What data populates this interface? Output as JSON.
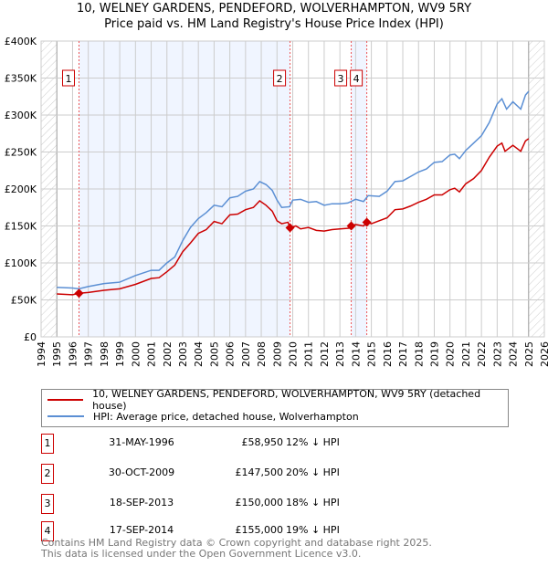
{
  "title_line1": "10, WELNEY GARDENS, PENDEFORD, WOLVERHAMPTON, WV9 5RY",
  "title_line2": "Price paid vs. HM Land Registry's House Price Index (HPI)",
  "chart_data": {
    "type": "line",
    "xlim": [
      1994,
      2026
    ],
    "ylim": [
      0,
      400000
    ],
    "x_ticks": [
      "1994",
      "1995",
      "1996",
      "1997",
      "1998",
      "1999",
      "2000",
      "2001",
      "2002",
      "2003",
      "2004",
      "2005",
      "2006",
      "2007",
      "2008",
      "2009",
      "2010",
      "2011",
      "2012",
      "2013",
      "2014",
      "2015",
      "2016",
      "2017",
      "2018",
      "2019",
      "2020",
      "2021",
      "2022",
      "2023",
      "2024",
      "2025",
      "2026"
    ],
    "y_ticks": [
      {
        "v": 0,
        "label": "£0"
      },
      {
        "v": 50000,
        "label": "£50K"
      },
      {
        "v": 100000,
        "label": "£100K"
      },
      {
        "v": 150000,
        "label": "£150K"
      },
      {
        "v": 200000,
        "label": "£200K"
      },
      {
        "v": 250000,
        "label": "£250K"
      },
      {
        "v": 300000,
        "label": "£300K"
      },
      {
        "v": 350000,
        "label": "£350K"
      },
      {
        "v": 400000,
        "label": "£400K"
      }
    ],
    "grid": true,
    "data_range": [
      1995,
      2025
    ],
    "series": [
      {
        "name": "10, WELNEY GARDENS, PENDEFORD, WOLVERHAMPTON, WV9 5RY (detached house)",
        "color": "#cc0000",
        "x": [
          1995,
          1996,
          1996.41,
          1997,
          1998,
          1999,
          2000,
          2001,
          2001.5,
          2002,
          2002.5,
          2003,
          2003.5,
          2004,
          2004.5,
          2005,
          2005.5,
          2006,
          2006.5,
          2007,
          2007.5,
          2007.9,
          2008.3,
          2008.7,
          2009,
          2009.3,
          2009.7,
          2009.83,
          2010.2,
          2010.5,
          2011,
          2011.5,
          2012,
          2012.5,
          2013,
          2013.6,
          2013.72,
          2014,
          2014.5,
          2014.71,
          2015,
          2015.5,
          2016,
          2016.5,
          2017,
          2017.5,
          2018,
          2018.5,
          2019,
          2019.5,
          2020,
          2020.3,
          2020.6,
          2021,
          2021.5,
          2022,
          2022.5,
          2023,
          2023.3,
          2023.5,
          2024,
          2024.5,
          2024.8,
          2025
        ],
        "y": [
          58,
          57,
          58.95,
          60,
          63,
          65,
          71,
          79,
          80,
          88,
          97,
          115,
          127,
          140,
          145,
          156,
          153,
          165,
          166,
          172,
          175,
          184,
          178,
          170,
          157,
          153,
          155,
          147.5,
          150,
          146,
          148,
          144,
          143,
          145,
          146,
          147,
          150,
          152,
          150,
          155,
          153,
          157,
          161,
          172,
          173,
          177,
          182,
          186,
          192,
          192,
          199,
          201,
          196,
          207,
          214,
          225,
          243,
          258,
          262,
          251,
          259,
          251,
          265,
          268
        ]
      },
      {
        "name": "HPI: Average price, detached house, Wolverhampton",
        "color": "#5b8fd4",
        "x": [
          1995,
          1996,
          1996.4,
          1997,
          1998,
          1999,
          2000,
          2001,
          2001.5,
          2002,
          2002.5,
          2003,
          2003.5,
          2004,
          2004.5,
          2005,
          2005.5,
          2006,
          2006.5,
          2007,
          2007.5,
          2007.9,
          2008.3,
          2008.7,
          2009,
          2009.3,
          2009.8,
          2010,
          2010.5,
          2011,
          2011.5,
          2012,
          2012.5,
          2013,
          2013.5,
          2014,
          2014.5,
          2014.8,
          2015.5,
          2016,
          2016.5,
          2017,
          2017.5,
          2018,
          2018.5,
          2019,
          2019.5,
          2020,
          2020.3,
          2020.6,
          2021,
          2021.5,
          2022,
          2022.5,
          2023,
          2023.3,
          2023.6,
          2024,
          2024.5,
          2024.8,
          2025
        ],
        "y": [
          67,
          66,
          65,
          68,
          72,
          74,
          83,
          90,
          90,
          100,
          108,
          130,
          148,
          160,
          168,
          178,
          176,
          188,
          190,
          197,
          200,
          210,
          206,
          198,
          185,
          175,
          176,
          185,
          186,
          182,
          183,
          178,
          180,
          180,
          181,
          186,
          183,
          191,
          190,
          197,
          210,
          211,
          217,
          223,
          227,
          236,
          237,
          246,
          247,
          241,
          252,
          262,
          272,
          290,
          315,
          322,
          308,
          318,
          308,
          327,
          332
        ]
      }
    ],
    "y_units": "thousands GBP",
    "sales": [
      {
        "n": "1",
        "x": 1996.41,
        "y": 58.95,
        "date": "31-MAY-1996",
        "price": "£58,950",
        "hpi": "12% ↓ HPI"
      },
      {
        "n": "2",
        "x": 2009.83,
        "y": 147.5,
        "date": "30-OCT-2009",
        "price": "£147,500",
        "hpi": "20% ↓ HPI"
      },
      {
        "n": "3",
        "x": 2013.72,
        "y": 150,
        "date": "18-SEP-2013",
        "price": "£150,000",
        "hpi": "18% ↓ HPI"
      },
      {
        "n": "4",
        "x": 2014.71,
        "y": 155,
        "date": "17-SEP-2014",
        "price": "£155,000",
        "hpi": "19% ↓ HPI"
      }
    ]
  },
  "legend": {
    "red": "10, WELNEY GARDENS, PENDEFORD, WOLVERHAMPTON, WV9 5RY (detached house)",
    "blue": "HPI: Average price, detached house, Wolverhampton"
  },
  "footer": {
    "line1": "Contains HM Land Registry data © Crown copyright and database right 2025.",
    "line2": "This data is licensed under the Open Government Licence v3.0."
  }
}
